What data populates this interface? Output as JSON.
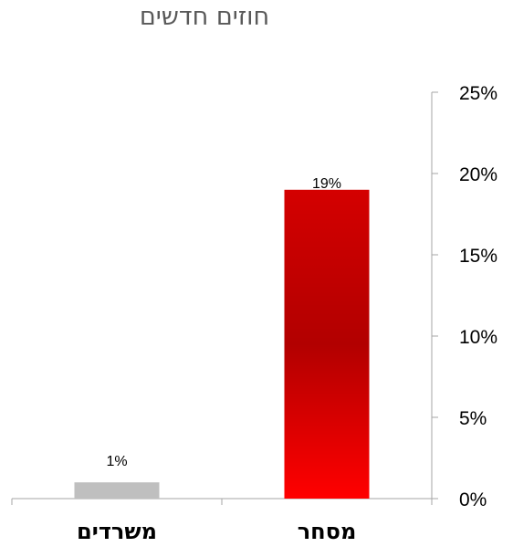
{
  "chart_data": {
    "type": "bar",
    "title": "חוזים חדשים",
    "categories": [
      "מסחר",
      "משרדים"
    ],
    "values": [
      19,
      1
    ],
    "value_labels": [
      "19%",
      "1%"
    ],
    "bar_colors": [
      "#d40000",
      "#bfbfbf"
    ],
    "ylim": [
      0,
      25
    ],
    "yticks": [
      "0%",
      "5%",
      "10%",
      "15%",
      "20%",
      "25%"
    ],
    "y_axis_position": "right",
    "category_order": "right-to-left",
    "grid": false,
    "legend": "none",
    "xlabel": "",
    "ylabel": ""
  }
}
